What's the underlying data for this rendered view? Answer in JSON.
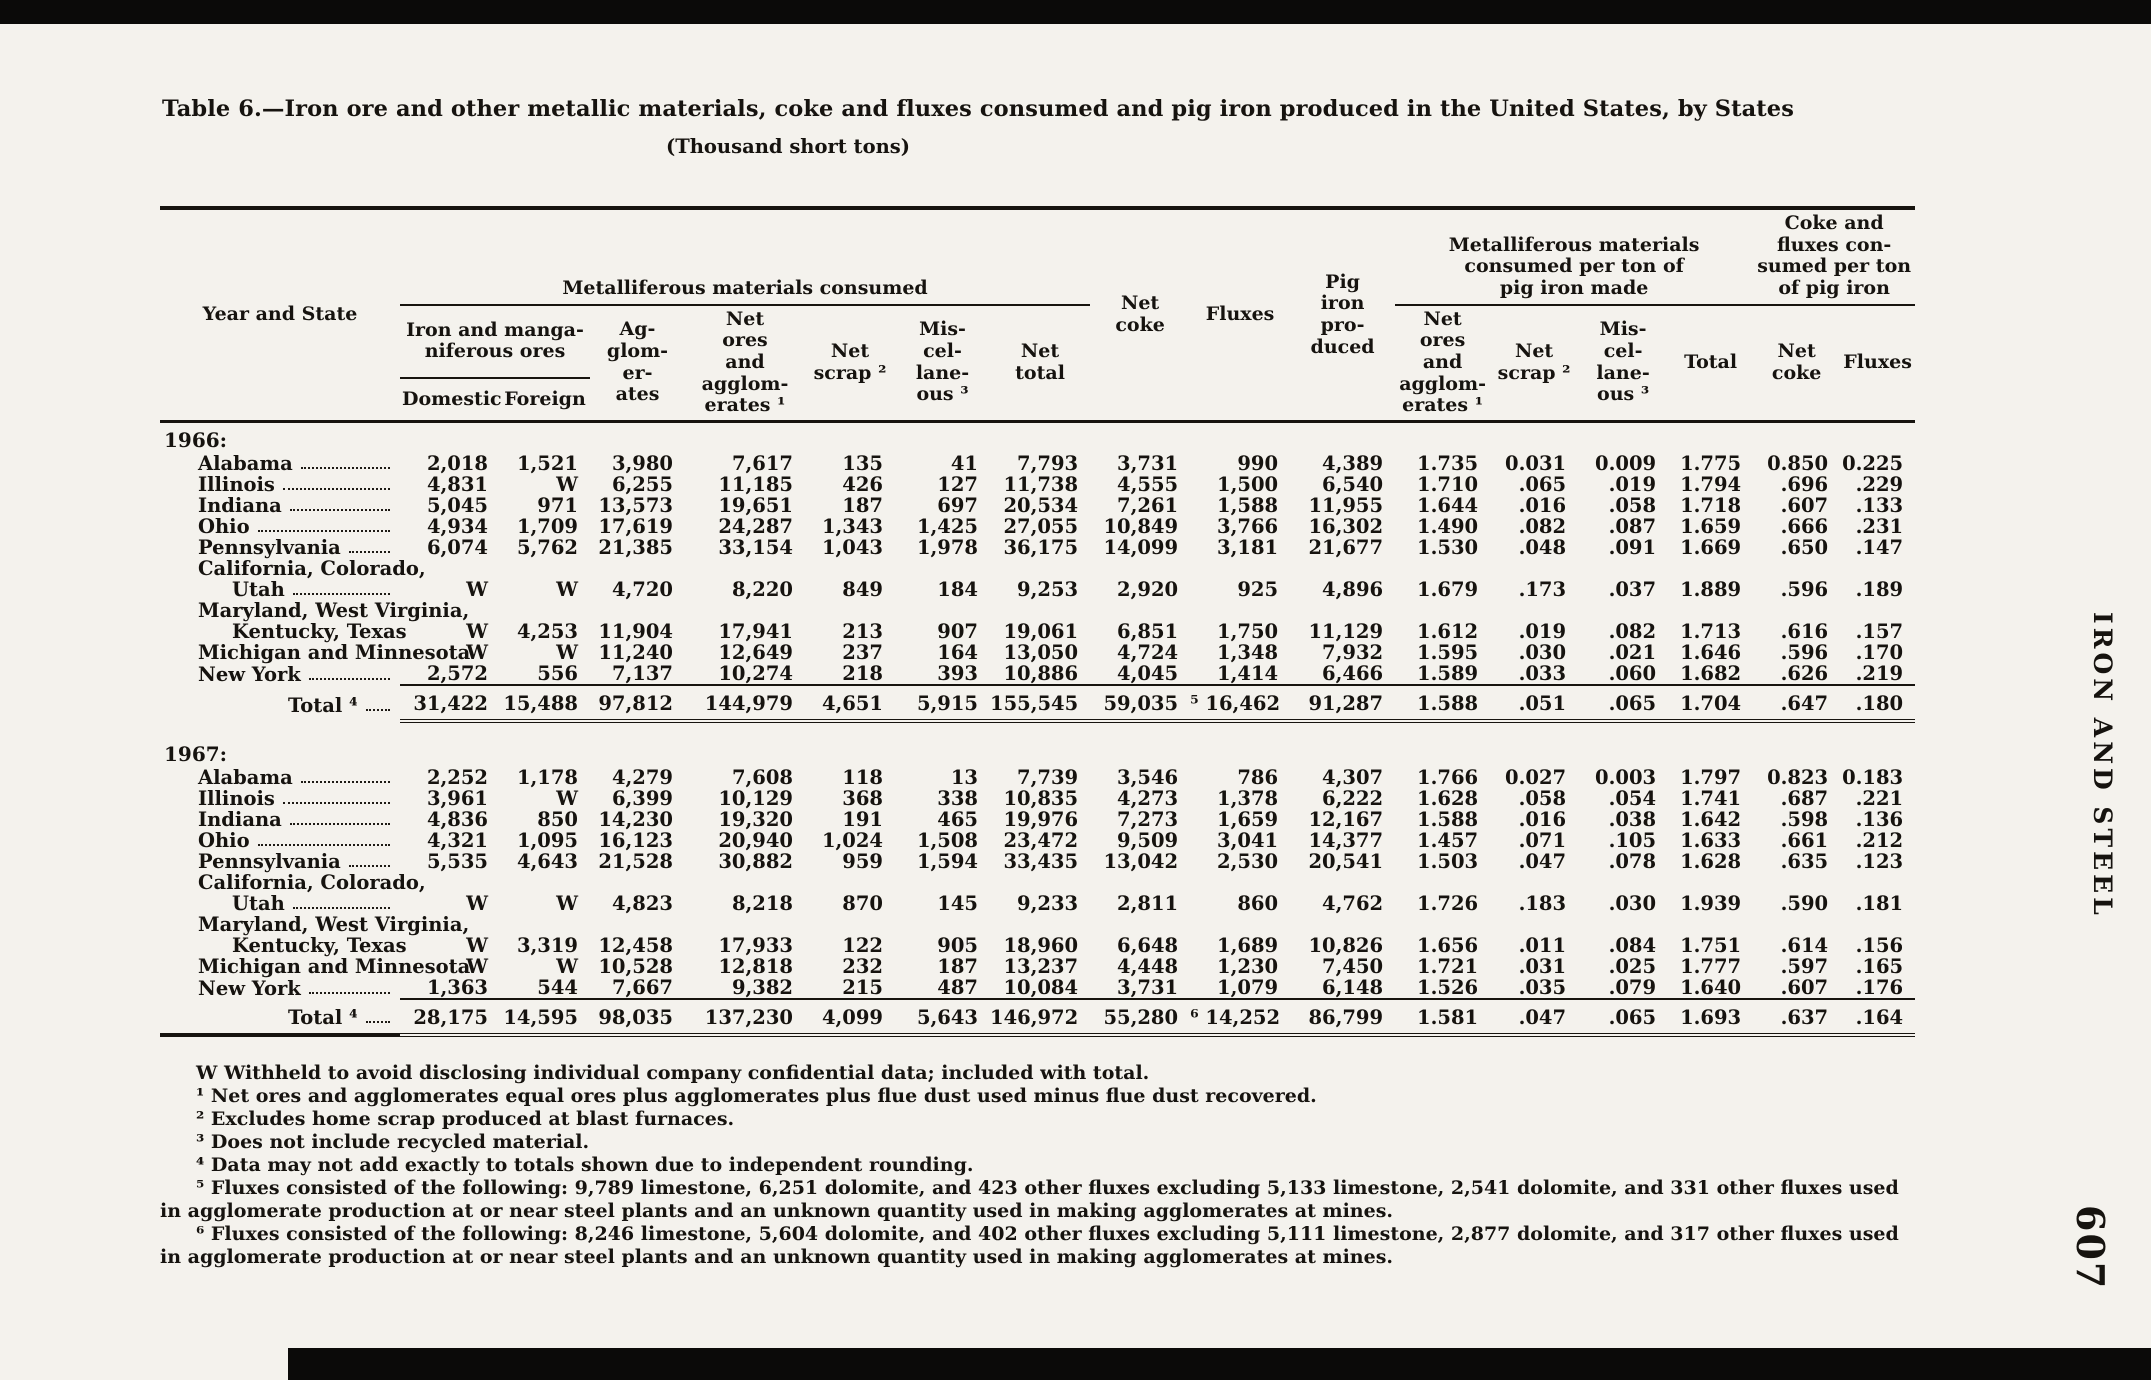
{
  "page": {
    "title": "Table 6.—Iron ore and other metallic materials, coke and fluxes consumed and pig iron produced in the United States, by States",
    "subtitle": "(Thousand short tons)",
    "side_label": "IRON AND STEEL",
    "page_number": "607"
  },
  "colors": {
    "paper": "#f4f2ed",
    "ink": "#16130f",
    "scan_bar": "#0b0a09"
  },
  "table": {
    "headers": {
      "year_state": "Year and State",
      "consumed_group": "Metalliferous materials consumed",
      "per_ton_group": "Metalliferous materials\nconsumed per ton of\npig iron made",
      "coke_fluxes_group": "Coke and\nfluxes con-\nsumed per ton\nof pig iron",
      "iron_manga": "Iron and manga-\nniferous ores",
      "domestic": "Domestic",
      "foreign": "Foreign",
      "agglomerates": "Ag-\nglom-\ner-\nates",
      "net_ores": "Net\nores\nand\nagglom-\nerates ¹",
      "net_scrap": "Net\nscrap ²",
      "misc": "Mis-\ncel-\nlane-\nous ³",
      "net_total": "Net\ntotal",
      "net_coke": "Net\ncoke",
      "fluxes": "Fluxes",
      "pig_iron": "Pig\niron\npro-\nduced",
      "total": "Total"
    },
    "sections": [
      {
        "year_label": "1966:",
        "spacer_after": true,
        "rows": [
          {
            "label": "Alabama",
            "indent": 1,
            "values": [
              "2,018",
              "1,521",
              "3,980",
              "7,617",
              "135",
              "41",
              "7,793",
              "3,731",
              "990",
              "4,389",
              "1.735",
              "0.031",
              "0.009",
              "1.775",
              "0.850",
              "0.225"
            ]
          },
          {
            "label": "Illinois",
            "indent": 1,
            "values": [
              "4,831",
              "W",
              "6,255",
              "11,185",
              "426",
              "127",
              "11,738",
              "4,555",
              "1,500",
              "6,540",
              "1.710",
              ".065",
              ".019",
              "1.794",
              ".696",
              ".229"
            ]
          },
          {
            "label": "Indiana",
            "indent": 1,
            "values": [
              "5,045",
              "971",
              "13,573",
              "19,651",
              "187",
              "697",
              "20,534",
              "7,261",
              "1,588",
              "11,955",
              "1.644",
              ".016",
              ".058",
              "1.718",
              ".607",
              ".133"
            ]
          },
          {
            "label": "Ohio",
            "indent": 1,
            "values": [
              "4,934",
              "1,709",
              "17,619",
              "24,287",
              "1,343",
              "1,425",
              "27,055",
              "10,849",
              "3,766",
              "16,302",
              "1.490",
              ".082",
              ".087",
              "1.659",
              ".666",
              ".231"
            ]
          },
          {
            "label": "Pennsylvania",
            "indent": 1,
            "values": [
              "6,074",
              "5,762",
              "21,385",
              "33,154",
              "1,043",
              "1,978",
              "36,175",
              "14,099",
              "3,181",
              "21,677",
              "1.530",
              ".048",
              ".091",
              "1.669",
              ".650",
              ".147"
            ]
          },
          {
            "pre_lines": [
              "California, Colorado,"
            ],
            "label": "Utah",
            "indent": 2,
            "values": [
              "W",
              "W",
              "4,720",
              "8,220",
              "849",
              "184",
              "9,253",
              "2,920",
              "925",
              "4,896",
              "1.679",
              ".173",
              ".037",
              "1.889",
              ".596",
              ".189"
            ]
          },
          {
            "pre_lines": [
              "Maryland, West Virginia,"
            ],
            "label": "Kentucky, Texas",
            "indent": 2,
            "values": [
              "W",
              "4,253",
              "11,904",
              "17,941",
              "213",
              "907",
              "19,061",
              "6,851",
              "1,750",
              "11,129",
              "1.612",
              ".019",
              ".082",
              "1.713",
              ".616",
              ".157"
            ]
          },
          {
            "label": "Michigan and Minnesota",
            "indent": 1,
            "values": [
              "W",
              "W",
              "11,240",
              "12,649",
              "237",
              "164",
              "13,050",
              "4,724",
              "1,348",
              "7,932",
              "1.595",
              ".030",
              ".021",
              "1.646",
              ".596",
              ".170"
            ]
          },
          {
            "label": "New York",
            "indent": 1,
            "values": [
              "2,572",
              "556",
              "7,137",
              "10,274",
              "218",
              "393",
              "10,886",
              "4,045",
              "1,414",
              "6,466",
              "1.589",
              ".033",
              ".060",
              "1.682",
              ".626",
              ".219"
            ]
          }
        ],
        "total": {
          "label": "Total ⁴",
          "values": [
            "31,422",
            "15,488",
            "97,812",
            "144,979",
            "4,651",
            "5,915",
            "155,545",
            "59,035",
            "⁵ 16,462",
            "91,287",
            "1.588",
            ".051",
            ".065",
            "1.704",
            ".647",
            ".180"
          ]
        }
      },
      {
        "year_label": "1967:",
        "spacer_after": false,
        "rows": [
          {
            "label": "Alabama",
            "indent": 1,
            "values": [
              "2,252",
              "1,178",
              "4,279",
              "7,608",
              "118",
              "13",
              "7,739",
              "3,546",
              "786",
              "4,307",
              "1.766",
              "0.027",
              "0.003",
              "1.797",
              "0.823",
              "0.183"
            ]
          },
          {
            "label": "Illinois",
            "indent": 1,
            "values": [
              "3,961",
              "W",
              "6,399",
              "10,129",
              "368",
              "338",
              "10,835",
              "4,273",
              "1,378",
              "6,222",
              "1.628",
              ".058",
              ".054",
              "1.741",
              ".687",
              ".221"
            ]
          },
          {
            "label": "Indiana",
            "indent": 1,
            "values": [
              "4,836",
              "850",
              "14,230",
              "19,320",
              "191",
              "465",
              "19,976",
              "7,273",
              "1,659",
              "12,167",
              "1.588",
              ".016",
              ".038",
              "1.642",
              ".598",
              ".136"
            ]
          },
          {
            "label": "Ohio",
            "indent": 1,
            "values": [
              "4,321",
              "1,095",
              "16,123",
              "20,940",
              "1,024",
              "1,508",
              "23,472",
              "9,509",
              "3,041",
              "14,377",
              "1.457",
              ".071",
              ".105",
              "1.633",
              ".661",
              ".212"
            ]
          },
          {
            "label": "Pennsylvania",
            "indent": 1,
            "values": [
              "5,535",
              "4,643",
              "21,528",
              "30,882",
              "959",
              "1,594",
              "33,435",
              "13,042",
              "2,530",
              "20,541",
              "1.503",
              ".047",
              ".078",
              "1.628",
              ".635",
              ".123"
            ]
          },
          {
            "pre_lines": [
              "California, Colorado,"
            ],
            "label": "Utah",
            "indent": 2,
            "values": [
              "W",
              "W",
              "4,823",
              "8,218",
              "870",
              "145",
              "9,233",
              "2,811",
              "860",
              "4,762",
              "1.726",
              ".183",
              ".030",
              "1.939",
              ".590",
              ".181"
            ]
          },
          {
            "pre_lines": [
              "Maryland, West Virginia,"
            ],
            "label": "Kentucky, Texas",
            "indent": 2,
            "values": [
              "W",
              "3,319",
              "12,458",
              "17,933",
              "122",
              "905",
              "18,960",
              "6,648",
              "1,689",
              "10,826",
              "1.656",
              ".011",
              ".084",
              "1.751",
              ".614",
              ".156"
            ]
          },
          {
            "label": "Michigan and Minnesota",
            "indent": 1,
            "values": [
              "W",
              "W",
              "10,528",
              "12,818",
              "232",
              "187",
              "13,237",
              "4,448",
              "1,230",
              "7,450",
              "1.721",
              ".031",
              ".025",
              "1.777",
              ".597",
              ".165"
            ]
          },
          {
            "label": "New York",
            "indent": 1,
            "values": [
              "1,363",
              "544",
              "7,667",
              "9,382",
              "215",
              "487",
              "10,084",
              "3,731",
              "1,079",
              "6,148",
              "1.526",
              ".035",
              ".079",
              "1.640",
              ".607",
              ".176"
            ]
          }
        ],
        "total": {
          "label": "Total ⁴",
          "values": [
            "28,175",
            "14,595",
            "98,035",
            "137,230",
            "4,099",
            "5,643",
            "146,972",
            "55,280",
            "⁶ 14,252",
            "86,799",
            "1.581",
            ".047",
            ".065",
            "1.693",
            ".637",
            ".164"
          ]
        }
      }
    ]
  },
  "footnotes": [
    "W Withheld to avoid disclosing individual company confidential data; included with total.",
    "¹ Net ores and agglomerates equal ores plus agglomerates plus flue dust used minus flue dust recovered.",
    "² Excludes home scrap produced at blast furnaces.",
    "³ Does not include recycled material.",
    "⁴ Data may not add exactly to totals shown due to independent rounding.",
    "⁵ Fluxes consisted of the following: 9,789 limestone, 6,251 dolomite, and 423 other fluxes excluding 5,133 limestone, 2,541 dolomite, and 331 other fluxes used in agglomerate production at or near steel plants and an unknown quantity used in making agglomerates at mines.",
    "⁶ Fluxes consisted of the following: 8,246 limestone, 5,604 dolomite, and 402 other fluxes excluding 5,111 limestone, 2,877 dolomite, and 317 other fluxes used in agglomerate production at or near steel plants and an unknown quantity used in making agglomerates at mines."
  ]
}
